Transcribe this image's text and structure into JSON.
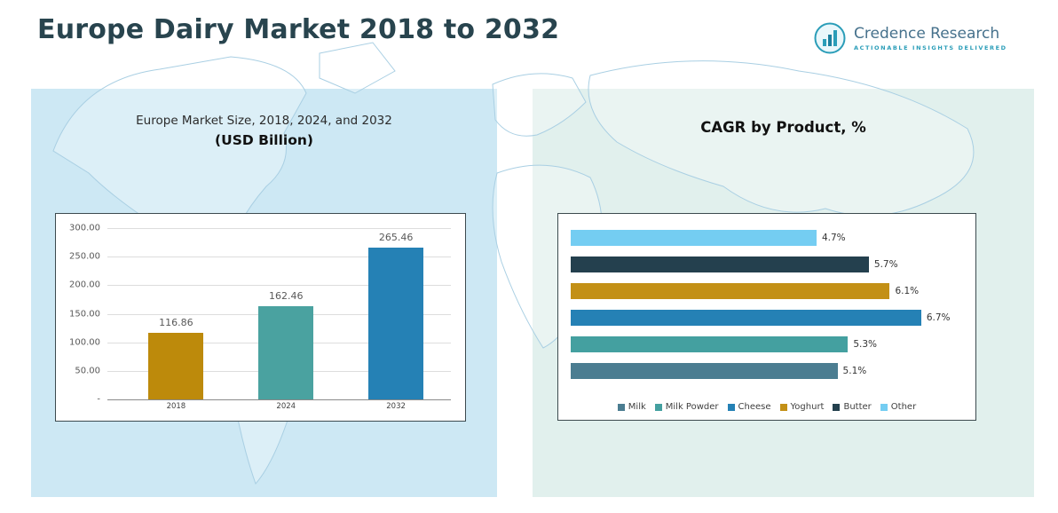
{
  "header": {
    "title": "Europe Dairy Market 2018 to 2032",
    "logo": {
      "name": "Credence Research",
      "tagline": "Actionable Insights Delivered"
    }
  },
  "left_chart": {
    "title_line1": "Europe Market Size, 2018, 2024, and 2032",
    "title_line2": "(USD Billion)"
  },
  "right_chart": {
    "title": "CAGR by Product, %"
  },
  "colors": {
    "panel_left": "#cde8f4",
    "panel_right": "#e1f0ed",
    "title_text": "#28444e",
    "gold": "#bd8a0b",
    "teal": "#4aa2a0",
    "blue": "#2581b5",
    "dark_navy": "#24404e",
    "light_sky": "#74cdf2",
    "steel": "#4b7d91"
  },
  "chart_data": [
    {
      "type": "bar",
      "title": "Europe Market Size, 2018, 2024, and 2032 (USD Billion)",
      "categories": [
        "2018",
        "2024",
        "2032"
      ],
      "values": [
        116.86,
        162.46,
        265.46
      ],
      "data_labels": [
        "116.86",
        "162.46",
        "265.46"
      ],
      "bar_colors": [
        "#bd8a0b",
        "#4aa2a0",
        "#2581b5"
      ],
      "xlabel": "",
      "ylabel": "",
      "ylim": [
        0,
        300
      ],
      "ytick_labels": [
        "300.00",
        "250.00",
        "200.00",
        "150.00",
        "100.00",
        "50.00",
        "-"
      ],
      "grid": true,
      "legend_position": "none"
    },
    {
      "type": "bar",
      "orientation": "horizontal",
      "title": "CAGR by Product, %",
      "categories_top_to_bottom": [
        "Other",
        "Butter",
        "Yoghurt",
        "Cheese",
        "Milk Powder",
        "Milk"
      ],
      "values_top_to_bottom": [
        4.7,
        5.7,
        6.1,
        6.7,
        5.3,
        5.1
      ],
      "data_labels_top_to_bottom": [
        "4.7%",
        "5.7%",
        "6.1%",
        "6.7%",
        "5.3%",
        "5.1%"
      ],
      "bar_colors_top_to_bottom": [
        "#74cdf2",
        "#24404e",
        "#c39016",
        "#2581b5",
        "#44a0a0",
        "#4b7d91"
      ],
      "xlim": [
        0,
        7.5
      ],
      "grid": false,
      "legend_position": "bottom",
      "legend_items": [
        {
          "label": "Milk",
          "color": "#4b7d91"
        },
        {
          "label": "Milk Powder",
          "color": "#44a0a0"
        },
        {
          "label": "Cheese",
          "color": "#2581b5"
        },
        {
          "label": "Yoghurt",
          "color": "#c39016"
        },
        {
          "label": "Butter",
          "color": "#24404e"
        },
        {
          "label": "Other",
          "color": "#74cdf2"
        }
      ]
    }
  ]
}
